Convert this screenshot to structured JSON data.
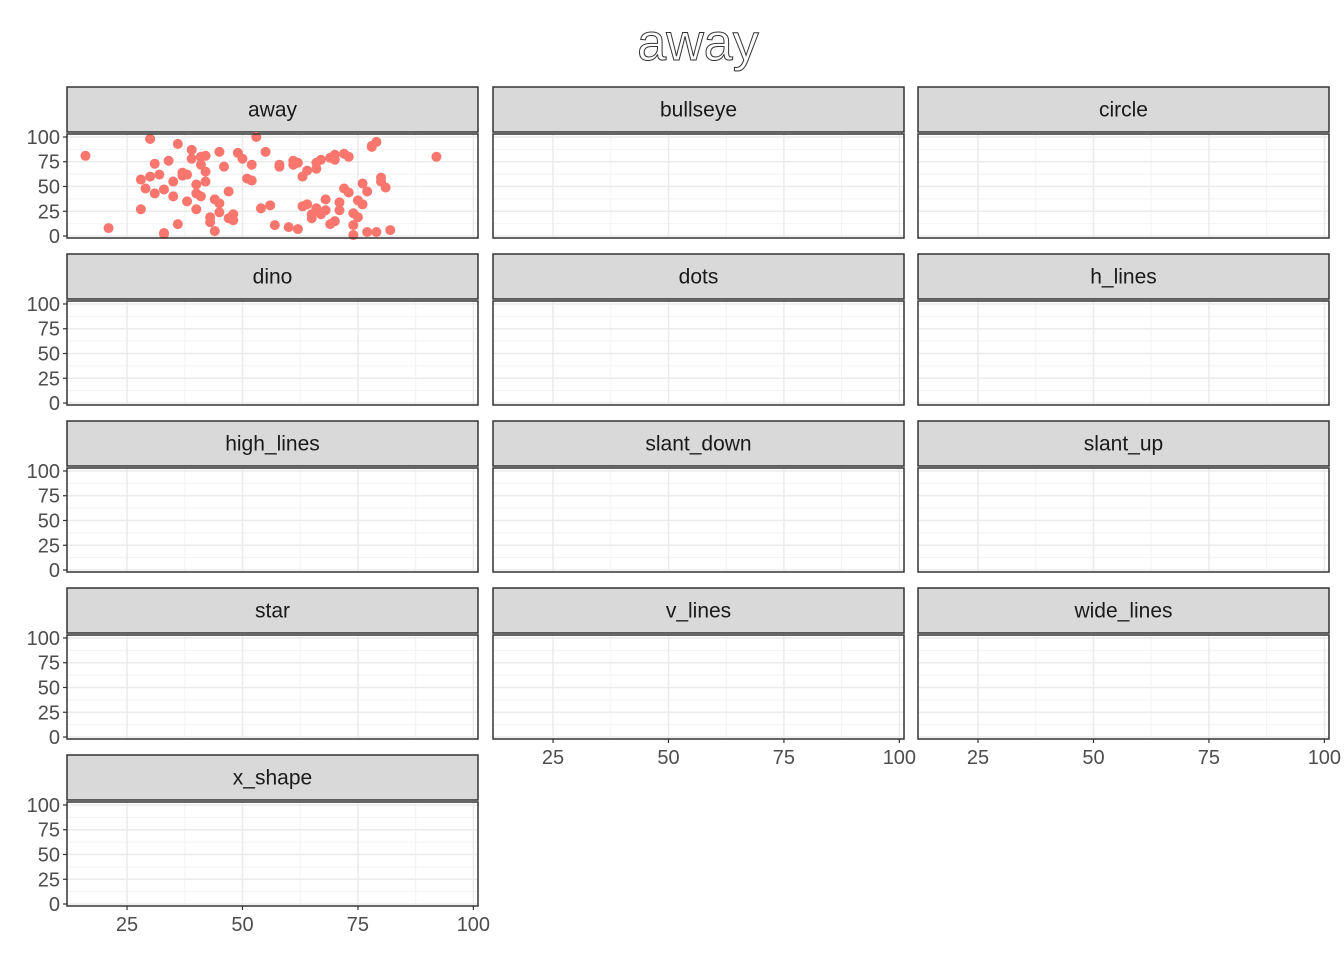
{
  "chart_data": {
    "type": "scatter",
    "title": "away",
    "facets": [
      "away",
      "bullseye",
      "circle",
      "dino",
      "dots",
      "h_lines",
      "high_lines",
      "slant_down",
      "slant_up",
      "star",
      "v_lines",
      "wide_lines",
      "x_shape"
    ],
    "xlim": [
      12,
      101
    ],
    "ylim": [
      -2,
      103
    ],
    "x_ticks": [
      25,
      50,
      75,
      100
    ],
    "y_ticks": [
      0,
      25,
      50,
      75,
      100
    ],
    "grid": true,
    "point_color": "#F8766D",
    "series": [
      {
        "facet": "away",
        "x": [
          16,
          21,
          29,
          30,
          31,
          32,
          33,
          35,
          36,
          36,
          37,
          38,
          39,
          40,
          40,
          41,
          41,
          42,
          43,
          44,
          45,
          46,
          47,
          48,
          49,
          50,
          51,
          52,
          53,
          54,
          56,
          57,
          58,
          60,
          61,
          62,
          63,
          64,
          65,
          66,
          67,
          68,
          69,
          70,
          71,
          72,
          73,
          74,
          75,
          76,
          77,
          78,
          79,
          80,
          81,
          82,
          92,
          28,
          31,
          33,
          35,
          38,
          41,
          43,
          45,
          48,
          52,
          55,
          58,
          62,
          64,
          66,
          68,
          70,
          72,
          74,
          76,
          78,
          80,
          34,
          37,
          39,
          42,
          44,
          47,
          63,
          65,
          67,
          69,
          71,
          73,
          75,
          77,
          79,
          40,
          42,
          61,
          66,
          70,
          74,
          30,
          28,
          45,
          33
        ],
        "y": [
          81,
          8,
          48,
          98,
          73,
          62,
          3,
          55,
          12,
          93,
          61,
          35,
          87,
          52,
          27,
          80,
          40,
          65,
          19,
          5,
          24,
          70,
          45,
          16,
          84,
          78,
          58,
          72,
          100,
          28,
          31,
          11,
          72,
          9,
          76,
          7,
          30,
          66,
          18,
          74,
          22,
          37,
          79,
          15,
          26,
          83,
          44,
          1,
          19,
          53,
          4,
          90,
          95,
          55,
          49,
          6,
          80,
          57,
          43,
          2,
          40,
          62,
          72,
          14,
          33,
          22,
          56,
          85,
          70,
          74,
          32,
          68,
          26,
          77,
          48,
          11,
          32,
          91,
          59,
          76,
          64,
          78,
          81,
          37,
          18,
          60,
          22,
          77,
          12,
          34,
          80,
          36,
          45,
          4,
          43,
          55,
          72,
          28,
          82,
          23,
          60,
          27,
          85,
          47
        ]
      }
    ]
  }
}
